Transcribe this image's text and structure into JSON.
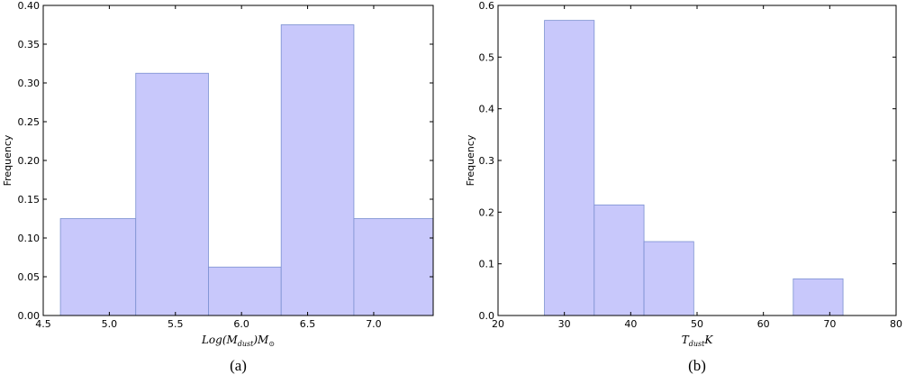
{
  "chart_data": [
    {
      "type": "bar",
      "panel_label": "(a)",
      "ylabel": "Frequency",
      "xlabel": {
        "base": "Log(M",
        "sub": "dust",
        "tail": ")M",
        "tail_sub": "⊙"
      },
      "xlim": [
        4.5,
        7.45
      ],
      "ylim": [
        0,
        0.4
      ],
      "xticks": [
        "4.5",
        "5.0",
        "5.5",
        "6.0",
        "6.5",
        "7.0"
      ],
      "xtick_values": [
        4.5,
        5.0,
        5.5,
        6.0,
        6.5,
        7.0
      ],
      "yticks": [
        "0.00",
        "0.05",
        "0.10",
        "0.15",
        "0.20",
        "0.25",
        "0.30",
        "0.35",
        "0.40"
      ],
      "ytick_values": [
        0,
        0.05,
        0.1,
        0.15,
        0.2,
        0.25,
        0.3,
        0.35,
        0.4
      ],
      "bins": [
        {
          "x0": 4.63,
          "x1": 5.2,
          "value": 0.125
        },
        {
          "x0": 5.2,
          "x1": 5.75,
          "value": 0.3125
        },
        {
          "x0": 5.75,
          "x1": 6.3,
          "value": 0.0625
        },
        {
          "x0": 6.3,
          "x1": 6.85,
          "value": 0.375
        },
        {
          "x0": 6.85,
          "x1": 7.45,
          "value": 0.125
        }
      ],
      "bar_color": "#c8c8fb"
    },
    {
      "type": "bar",
      "panel_label": "(b)",
      "ylabel": "Frequency",
      "xlabel": {
        "base": "T",
        "sub": "dust",
        "tail": "K",
        "tail_sub": ""
      },
      "xlim": [
        20,
        80
      ],
      "ylim": [
        0,
        0.6
      ],
      "xticks": [
        "20",
        "30",
        "40",
        "50",
        "60",
        "70",
        "80"
      ],
      "xtick_values": [
        20,
        30,
        40,
        50,
        60,
        70,
        80
      ],
      "yticks": [
        "0.0",
        "0.1",
        "0.2",
        "0.3",
        "0.4",
        "0.5",
        "0.6"
      ],
      "ytick_values": [
        0,
        0.1,
        0.2,
        0.3,
        0.4,
        0.5,
        0.6
      ],
      "bins": [
        {
          "x0": 27,
          "x1": 34.5,
          "value": 0.571
        },
        {
          "x0": 34.5,
          "x1": 42,
          "value": 0.214
        },
        {
          "x0": 42,
          "x1": 49.5,
          "value": 0.143
        },
        {
          "x0": 49.5,
          "x1": 57,
          "value": 0
        },
        {
          "x0": 57,
          "x1": 64.5,
          "value": 0
        },
        {
          "x0": 64.5,
          "x1": 72,
          "value": 0.071
        }
      ],
      "bar_color": "#c8c8fb"
    }
  ]
}
